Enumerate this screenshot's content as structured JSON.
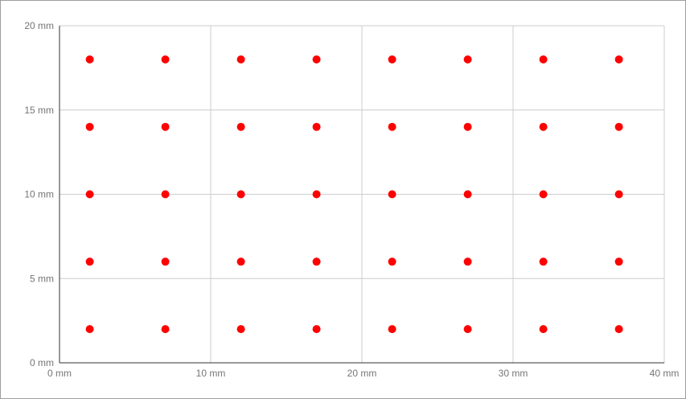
{
  "chart_data": {
    "type": "scatter",
    "title": "",
    "xlabel": "",
    "ylabel": "",
    "xlim": [
      0,
      40
    ],
    "ylim": [
      0,
      20
    ],
    "x_ticks": [
      0,
      10,
      20,
      30,
      40
    ],
    "y_ticks": [
      0,
      5,
      10,
      15,
      20
    ],
    "x_tick_labels": [
      "0 mm",
      "10 mm",
      "20 mm",
      "30 mm",
      "40 mm"
    ],
    "y_tick_labels": [
      "0 mm",
      "5 mm",
      "10 mm",
      "15 mm",
      "20 mm"
    ],
    "grid": true,
    "point_color": "#ff0000",
    "grid_color": "#cccccc",
    "axis_color": "#333333",
    "series": [
      {
        "x": [
          2,
          7,
          12,
          17,
          22,
          27,
          32,
          37,
          2,
          7,
          12,
          17,
          22,
          27,
          32,
          37,
          2,
          7,
          12,
          17,
          22,
          27,
          32,
          37,
          2,
          7,
          12,
          17,
          22,
          27,
          32,
          37,
          2,
          7,
          12,
          17,
          22,
          27,
          32,
          37
        ],
        "y": [
          18,
          18,
          18,
          18,
          18,
          18,
          18,
          18,
          14,
          14,
          14,
          14,
          14,
          14,
          14,
          14,
          10,
          10,
          10,
          10,
          10,
          10,
          10,
          10,
          6,
          6,
          6,
          6,
          6,
          6,
          6,
          6,
          2,
          2,
          2,
          2,
          2,
          2,
          2,
          2
        ]
      }
    ]
  }
}
